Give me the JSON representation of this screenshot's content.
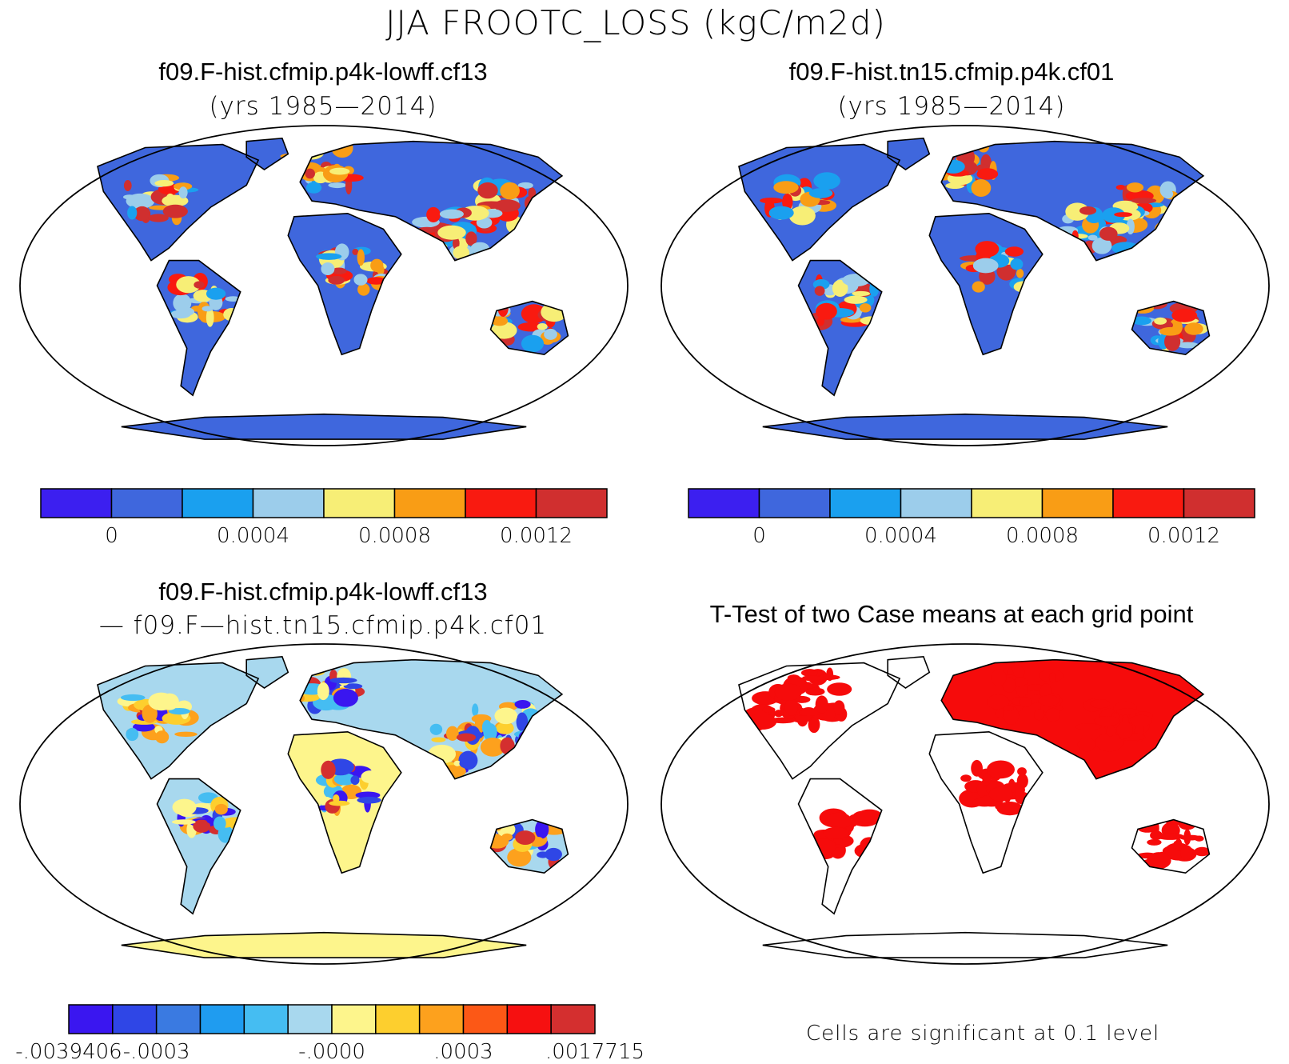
{
  "title": "JJA FROOTC_LOSS (kgC/m2d)",
  "panels": {
    "top_left": {
      "title": "f09.F-hist.cfmip.p4k-lowff.cf13",
      "subtitle": "(yrs 1985—2014)",
      "colorbar": {
        "colors": [
          "#3c1ff0",
          "#3f67dd",
          "#1aa0ef",
          "#9ccdeb",
          "#f7ee76",
          "#f99d15",
          "#f91a10",
          "#d02f2f"
        ],
        "labels": [
          "0",
          "0.0004",
          "0.0008",
          "0.0012"
        ]
      }
    },
    "top_right": {
      "title": "f09.F-hist.tn15.cfmip.p4k.cf01",
      "subtitle": "(yrs 1985—2014)",
      "colorbar": {
        "colors": [
          "#3c1ff0",
          "#3f67dd",
          "#1aa0ef",
          "#9ccdeb",
          "#f7ee76",
          "#f99d15",
          "#f91a10",
          "#d02f2f"
        ],
        "labels": [
          "0",
          "0.0004",
          "0.0008",
          "0.0012"
        ]
      }
    },
    "bottom_left": {
      "title": "f09.F-hist.cfmip.p4k-lowff.cf13",
      "subtitle": "— f09.F—hist.tn15.cfmip.p4k.cf01",
      "colorbar": {
        "colors": [
          "#3a16f0",
          "#2f46e6",
          "#3a7ae1",
          "#1f9cf0",
          "#45bdf2",
          "#a8d8ee",
          "#fdf58c",
          "#fdcf2e",
          "#fda11d",
          "#fc5816",
          "#f61010",
          "#d42f2f"
        ],
        "labels": [
          "-.0039406",
          "-.0003",
          "-.0000",
          ".0003",
          ".0017715"
        ]
      }
    },
    "bottom_right": {
      "title": "T-Test of two Case means at each grid point",
      "note": "Cells are significant at 0.1 level",
      "significance_color": "#f60b0b"
    }
  }
}
